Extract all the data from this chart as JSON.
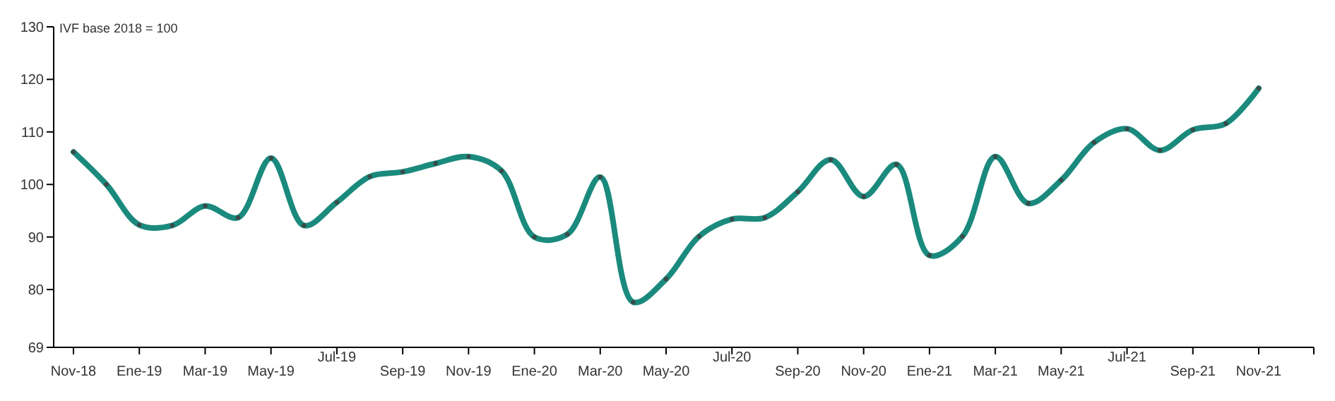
{
  "chart_data": {
    "type": "line",
    "ylabel": "IVF base 2018 = 100",
    "categories": [
      "Nov-18",
      null,
      "Ene-19",
      null,
      "Mar-19",
      null,
      "May-19",
      null,
      "Jul-19",
      null,
      "Sep-19",
      null,
      "Nov-19",
      null,
      "Ene-20",
      null,
      "Mar-20",
      null,
      "May-20",
      null,
      "Jul-20",
      null,
      "Sep-20",
      null,
      "Nov-20",
      null,
      "Ene-21",
      null,
      "Mar-21",
      null,
      "May-21",
      null,
      "Jul-21",
      null,
      "Sep-21",
      null,
      "Nov-21"
    ],
    "series": [
      {
        "color": "#1a8a7d",
        "values": [
          106.2,
          100,
          92.3,
          92.2,
          95.9,
          93.7,
          105,
          92.2,
          96.6,
          101.5,
          102.4,
          104,
          105.3,
          102.6,
          90,
          90.5,
          101.4,
          77.6,
          82,
          90.1,
          93.4,
          93.7,
          98.6,
          104.7,
          97.7,
          103.8,
          86.5,
          90.1,
          105.3,
          96.4,
          100.8,
          108,
          110.6,
          106.5,
          110.4,
          111.6,
          118.3
        ]
      }
    ],
    "ylim": [
      69,
      130
    ],
    "yticks": [
      69,
      80,
      90,
      100,
      110,
      120,
      130
    ],
    "grid": false,
    "marker": "circle",
    "line_style": "solid"
  }
}
